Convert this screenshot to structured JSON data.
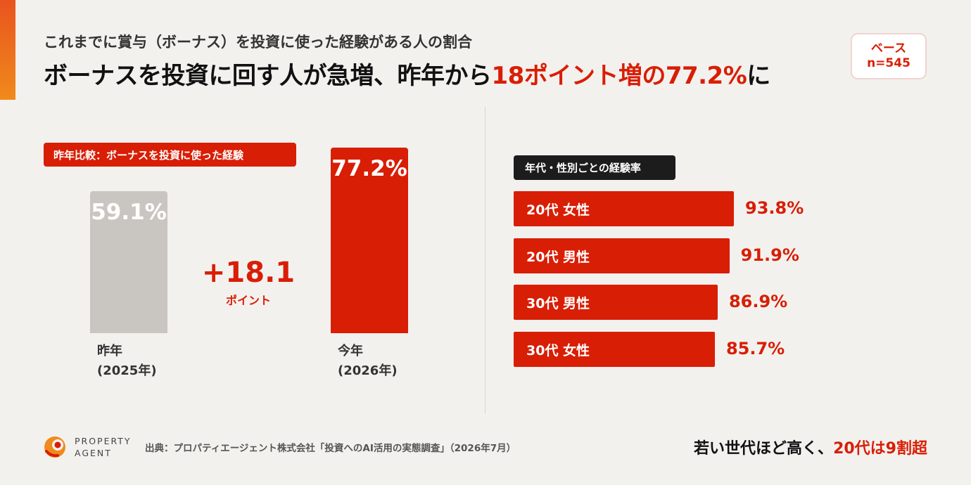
{
  "header": {
    "subtitle": "これまでに賞与（ボーナス）を投資に使った経験がある人の割合",
    "headline_part1": "ボーナスを投資に回す人が急増、昨年から",
    "headline_highlight": "18ポイント増の77.2%",
    "headline_part2": "に"
  },
  "base": {
    "line1": "ベース",
    "line2": "n=545"
  },
  "left_panel": {
    "tag": "昨年比較：ボーナスを投資に使った経験"
  },
  "right_panel": {
    "tag": "年代・性別ごとの経験率"
  },
  "colors": {
    "accent": "#d81e05",
    "gray_bar": "#c9c6c1",
    "dark_tag": "#1c1c1c"
  },
  "chart_data": [
    {
      "type": "bar",
      "categories": [
        "昨年 (2025年)",
        "今年 (2026年)"
      ],
      "category_lines": [
        [
          "昨年",
          "(2025年)"
        ],
        [
          "今年",
          "(2026年)"
        ]
      ],
      "values": [
        59.1,
        77.2
      ],
      "data_labels": [
        "59.1%",
        "77.2%"
      ],
      "colors": [
        "#c9c6c1",
        "#d81e05"
      ],
      "ylim": [
        0,
        77.2
      ],
      "difference": {
        "value": "+18.1",
        "unit": "ポイント"
      }
    },
    {
      "type": "bar",
      "orientation": "horizontal",
      "categories": [
        "20代 女性",
        "20代 男性",
        "30代 男性",
        "30代 女性"
      ],
      "values": [
        93.8,
        91.9,
        86.9,
        85.7
      ],
      "data_labels": [
        "93.8%",
        "91.9%",
        "86.9%",
        "85.7%"
      ],
      "xlim": [
        0,
        93.8
      ],
      "color": "#d81e05"
    }
  ],
  "footer": {
    "logo_line1": "PROPERTY",
    "logo_line2": "AGENT",
    "source": "出典：プロパティエージェント株式会社「投資へのAI活用の実態調査」（2026年7月）",
    "note_part1": "若い世代ほど高く、",
    "note_highlight": "20代は9割超"
  }
}
